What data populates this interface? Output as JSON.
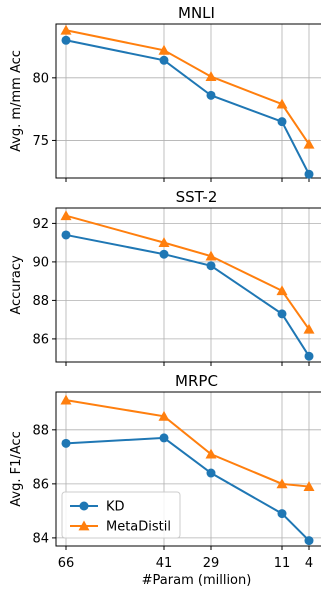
{
  "chart_data": [
    {
      "type": "line",
      "title": "MNLI",
      "xlabel": "",
      "ylabel": "Avg. m/mm Acc",
      "categories": [
        "66",
        "41",
        "29",
        "11",
        "4"
      ],
      "x": [
        66,
        41,
        29,
        11,
        4
      ],
      "ylim": [
        72,
        84.3
      ],
      "yticks": [
        75,
        80
      ],
      "series": [
        {
          "name": "KD",
          "color": "#1f77b4",
          "marker": "circle",
          "values": [
            83.0,
            81.4,
            78.6,
            76.5,
            72.3
          ]
        },
        {
          "name": "MetaDistil",
          "color": "#ff7f0e",
          "marker": "triangle",
          "values": [
            83.8,
            82.2,
            80.1,
            77.9,
            74.7
          ]
        }
      ],
      "grid": true,
      "legend": null
    },
    {
      "type": "line",
      "title": "SST-2",
      "xlabel": "",
      "ylabel": "Accuracy",
      "categories": [
        "66",
        "41",
        "29",
        "11",
        "4"
      ],
      "x": [
        66,
        41,
        29,
        11,
        4
      ],
      "ylim": [
        84.8,
        92.8
      ],
      "yticks": [
        86,
        88,
        90,
        92
      ],
      "series": [
        {
          "name": "KD",
          "color": "#1f77b4",
          "marker": "circle",
          "values": [
            91.4,
            90.4,
            89.8,
            87.3,
            85.1
          ]
        },
        {
          "name": "MetaDistil",
          "color": "#ff7f0e",
          "marker": "triangle",
          "values": [
            92.4,
            91.0,
            90.3,
            88.5,
            86.5
          ]
        }
      ],
      "grid": true,
      "legend": null
    },
    {
      "type": "line",
      "title": "MRPC",
      "xlabel": "#Param (million)",
      "ylabel": "Avg. F1/Acc",
      "categories": [
        "66",
        "41",
        "29",
        "11",
        "4"
      ],
      "x": [
        66,
        41,
        29,
        11,
        4
      ],
      "ylim": [
        83.7,
        89.4
      ],
      "yticks": [
        84,
        86,
        88
      ],
      "series": [
        {
          "name": "KD",
          "color": "#1f77b4",
          "marker": "circle",
          "values": [
            87.5,
            87.7,
            86.4,
            84.9,
            83.9
          ]
        },
        {
          "name": "MetaDistil",
          "color": "#ff7f0e",
          "marker": "triangle",
          "values": [
            89.1,
            88.5,
            87.1,
            86.0,
            85.9
          ]
        }
      ],
      "grid": true,
      "legend": "lower-left"
    }
  ]
}
